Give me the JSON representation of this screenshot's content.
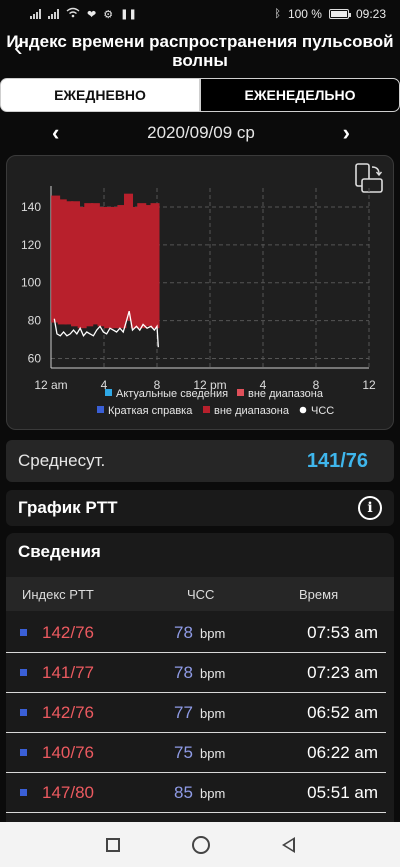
{
  "status_bar": {
    "battery": "100 %",
    "time": "09:23"
  },
  "header": {
    "title": "Индекс времени распространения пульсовой волны"
  },
  "tabs": [
    {
      "label": "ЕЖЕДНЕВНО",
      "active": true
    },
    {
      "label": "ЕЖЕНЕДЕЛЬНО",
      "active": false
    }
  ],
  "date": "2020/09/09 ср",
  "chart_data": {
    "type": "bar",
    "x_ticks": [
      "12 am",
      "4",
      "8",
      "12 pm",
      "4",
      "8",
      "12"
    ],
    "y_ticks": [
      140,
      120,
      100,
      80,
      60
    ],
    "ylim": [
      55,
      150
    ],
    "xlim_hours": [
      0,
      24
    ],
    "legend": [
      {
        "label": "Актуальные сведения",
        "color": "#2fa8e6"
      },
      {
        "label": "вне диапазона",
        "color": "#e0505a"
      },
      {
        "label": "Краткая справка",
        "color": "#3a5fd6"
      },
      {
        "label": "вне диапазона",
        "color": "#b8202c"
      },
      {
        "label": "ЧСС",
        "color": "#ffffff"
      }
    ],
    "bp_bars": [
      {
        "hour": 0.35,
        "sys": 146,
        "dia": 79
      },
      {
        "hour": 0.85,
        "sys": 144,
        "dia": 78
      },
      {
        "hour": 1.35,
        "sys": 143,
        "dia": 78
      },
      {
        "hour": 1.85,
        "sys": 143,
        "dia": 77
      },
      {
        "hour": 2.35,
        "sys": 140,
        "dia": 76
      },
      {
        "hour": 2.85,
        "sys": 142,
        "dia": 77
      },
      {
        "hour": 3.35,
        "sys": 142,
        "dia": 78
      },
      {
        "hour": 3.85,
        "sys": 140,
        "dia": 77
      },
      {
        "hour": 4.35,
        "sys": 140,
        "dia": 76
      },
      {
        "hour": 4.85,
        "sys": 140,
        "dia": 76
      },
      {
        "hour": 5.35,
        "sys": 141,
        "dia": 76
      },
      {
        "hour": 5.85,
        "sys": 147,
        "dia": 80
      },
      {
        "hour": 6.35,
        "sys": 140,
        "dia": 76
      },
      {
        "hour": 6.85,
        "sys": 142,
        "dia": 76
      },
      {
        "hour": 7.35,
        "sys": 141,
        "dia": 77
      },
      {
        "hour": 7.85,
        "sys": 142,
        "dia": 76
      }
    ],
    "hr_line": [
      {
        "hour": 0.25,
        "v": 81
      },
      {
        "hour": 0.45,
        "v": 73
      },
      {
        "hour": 0.7,
        "v": 72
      },
      {
        "hour": 0.95,
        "v": 74
      },
      {
        "hour": 1.2,
        "v": 72
      },
      {
        "hour": 1.45,
        "v": 73
      },
      {
        "hour": 1.7,
        "v": 75
      },
      {
        "hour": 1.95,
        "v": 73
      },
      {
        "hour": 2.2,
        "v": 76
      },
      {
        "hour": 2.45,
        "v": 72
      },
      {
        "hour": 2.7,
        "v": 74
      },
      {
        "hour": 2.95,
        "v": 73
      },
      {
        "hour": 3.2,
        "v": 72
      },
      {
        "hour": 3.45,
        "v": 75
      },
      {
        "hour": 3.7,
        "v": 77
      },
      {
        "hour": 3.95,
        "v": 74
      },
      {
        "hour": 4.2,
        "v": 73
      },
      {
        "hour": 4.45,
        "v": 76
      },
      {
        "hour": 4.7,
        "v": 75
      },
      {
        "hour": 4.95,
        "v": 74
      },
      {
        "hour": 5.2,
        "v": 76
      },
      {
        "hour": 5.45,
        "v": 74
      },
      {
        "hour": 5.7,
        "v": 80
      },
      {
        "hour": 5.9,
        "v": 85
      },
      {
        "hour": 6.15,
        "v": 75
      },
      {
        "hour": 6.45,
        "v": 77
      },
      {
        "hour": 6.7,
        "v": 75
      },
      {
        "hour": 6.95,
        "v": 78
      },
      {
        "hour": 7.25,
        "v": 76
      },
      {
        "hour": 7.55,
        "v": 77
      },
      {
        "hour": 7.8,
        "v": 75
      },
      {
        "hour": 8.0,
        "v": 77
      },
      {
        "hour": 8.1,
        "v": 66
      }
    ]
  },
  "average": {
    "label": "Среднесут.",
    "value": "141/76"
  },
  "ptt_chart": {
    "title": "График PTT"
  },
  "details": {
    "title": "Сведения",
    "columns": [
      "Индекс PTT",
      "ЧСС",
      "Время"
    ],
    "rows": [
      {
        "ptt": "142/76",
        "hr": "78",
        "unit": "bpm",
        "time": "07:53 am"
      },
      {
        "ptt": "141/77",
        "hr": "78",
        "unit": "bpm",
        "time": "07:23 am"
      },
      {
        "ptt": "142/76",
        "hr": "77",
        "unit": "bpm",
        "time": "06:52 am"
      },
      {
        "ptt": "140/76",
        "hr": "75",
        "unit": "bpm",
        "time": "06:22 am"
      },
      {
        "ptt": "147/80",
        "hr": "85",
        "unit": "bpm",
        "time": "05:51 am"
      }
    ]
  }
}
